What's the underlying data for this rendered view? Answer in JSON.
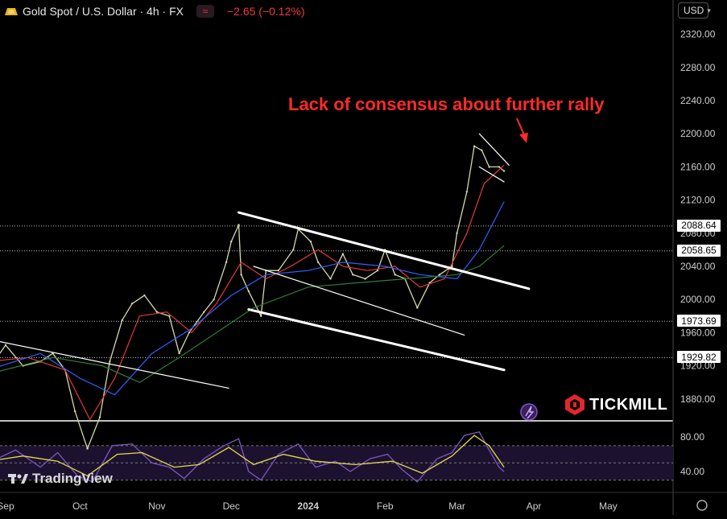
{
  "header": {
    "symbol": "Gold Spot / U.S. Dollar · 4h · FX",
    "change": "−2.65 (−0.12%)",
    "approx_icon": "approx-icon"
  },
  "currency_selector": {
    "value": "USD"
  },
  "annotation": "Lack of consensus about further rally",
  "branding": {
    "tradingview": "TradingView",
    "tickmill": "TICKMILL"
  },
  "price_badges": [
    {
      "label": "2088.64",
      "style": "light"
    },
    {
      "label": "2058.65",
      "style": "light"
    },
    {
      "label": "1973.69",
      "style": "light"
    },
    {
      "label": "1929.82",
      "style": "light"
    }
  ],
  "chart_data": {
    "type": "line",
    "title": "Gold Spot / U.S. Dollar · 4h · FX",
    "price_axis": {
      "ylim": [
        1845,
        2340
      ],
      "ticks": [
        "2320.00",
        "2280.00",
        "2240.00",
        "2200.00",
        "2160.00",
        "2120.00",
        "2080.00",
        "2040.00",
        "2000.00",
        "1960.00",
        "1920.00",
        "1880.00"
      ],
      "tick_values": [
        2320,
        2280,
        2240,
        2200,
        2160,
        2120,
        2080,
        2040,
        2000,
        1960,
        1920,
        1880
      ]
    },
    "time_axis": {
      "labels": [
        "Sep",
        "Oct",
        "Nov",
        "Dec",
        "2024",
        "Feb",
        "Mar",
        "Apr",
        "May"
      ]
    },
    "series": [
      {
        "name": "",
        "role": "price",
        "color": "#d8d8a8",
        "points": [
          [
            "2023-08-25",
            1915
          ],
          [
            "2023-09-01",
            1945
          ],
          [
            "2023-09-08",
            1920
          ],
          [
            "2023-09-15",
            1925
          ],
          [
            "2023-09-20",
            1935
          ],
          [
            "2023-09-25",
            1915
          ],
          [
            "2023-09-29",
            1865
          ],
          [
            "2023-10-04",
            1820
          ],
          [
            "2023-10-09",
            1858
          ],
          [
            "2023-10-13",
            1925
          ],
          [
            "2023-10-18",
            1975
          ],
          [
            "2023-10-22",
            1995
          ],
          [
            "2023-10-27",
            2005
          ],
          [
            "2023-11-01",
            1985
          ],
          [
            "2023-11-06",
            1980
          ],
          [
            "2023-11-10",
            1935
          ],
          [
            "2023-11-14",
            1960
          ],
          [
            "2023-11-20",
            1985
          ],
          [
            "2023-11-24",
            2000
          ],
          [
            "2023-11-29",
            2045
          ],
          [
            "2023-12-01",
            2070
          ],
          [
            "2023-12-04",
            2090
          ],
          [
            "2023-12-05",
            2030
          ],
          [
            "2023-12-08",
            2010
          ],
          [
            "2023-12-13",
            1980
          ],
          [
            "2023-12-15",
            2035
          ],
          [
            "2023-12-20",
            2035
          ],
          [
            "2023-12-26",
            2060
          ],
          [
            "2023-12-28",
            2085
          ],
          [
            "2024-01-02",
            2070
          ],
          [
            "2024-01-05",
            2045
          ],
          [
            "2024-01-10",
            2025
          ],
          [
            "2024-01-15",
            2055
          ],
          [
            "2024-01-19",
            2030
          ],
          [
            "2024-01-24",
            2025
          ],
          [
            "2024-01-29",
            2035
          ],
          [
            "2024-02-01",
            2060
          ],
          [
            "2024-02-05",
            2030
          ],
          [
            "2024-02-09",
            2025
          ],
          [
            "2024-02-14",
            1990
          ],
          [
            "2024-02-19",
            2020
          ],
          [
            "2024-02-23",
            2030
          ],
          [
            "2024-02-28",
            2040
          ],
          [
            "2024-03-01",
            2080
          ],
          [
            "2024-03-05",
            2130
          ],
          [
            "2024-03-08",
            2185
          ],
          [
            "2024-03-11",
            2180
          ],
          [
            "2024-03-14",
            2160
          ],
          [
            "2024-03-18",
            2160
          ],
          [
            "2024-03-20",
            2155
          ]
        ]
      },
      {
        "name": "",
        "role": "moving-average-fast",
        "color": "#e53935",
        "points": [
          [
            "2023-08-25",
            1925
          ],
          [
            "2023-09-10",
            1930
          ],
          [
            "2023-09-25",
            1915
          ],
          [
            "2023-10-05",
            1855
          ],
          [
            "2023-10-15",
            1905
          ],
          [
            "2023-10-25",
            1980
          ],
          [
            "2023-11-05",
            1985
          ],
          [
            "2023-11-15",
            1960
          ],
          [
            "2023-11-25",
            1995
          ],
          [
            "2023-12-05",
            2045
          ],
          [
            "2023-12-15",
            2025
          ],
          [
            "2023-12-25",
            2040
          ],
          [
            "2024-01-05",
            2060
          ],
          [
            "2024-01-15",
            2040
          ],
          [
            "2024-01-25",
            2035
          ],
          [
            "2024-02-05",
            2040
          ],
          [
            "2024-02-15",
            2015
          ],
          [
            "2024-02-25",
            2025
          ],
          [
            "2024-03-05",
            2080
          ],
          [
            "2024-03-12",
            2140
          ],
          [
            "2024-03-20",
            2162
          ]
        ]
      },
      {
        "name": "",
        "role": "moving-average-mid",
        "color": "#2962ff",
        "points": [
          [
            "2023-08-25",
            1915
          ],
          [
            "2023-09-15",
            1935
          ],
          [
            "2023-10-01",
            1905
          ],
          [
            "2023-10-15",
            1885
          ],
          [
            "2023-10-30",
            1935
          ],
          [
            "2023-11-15",
            1965
          ],
          [
            "2023-12-01",
            2005
          ],
          [
            "2023-12-15",
            2030
          ],
          [
            "2024-01-01",
            2035
          ],
          [
            "2024-01-15",
            2045
          ],
          [
            "2024-02-01",
            2040
          ],
          [
            "2024-02-15",
            2030
          ],
          [
            "2024-03-01",
            2025
          ],
          [
            "2024-03-10",
            2060
          ],
          [
            "2024-03-20",
            2118
          ]
        ]
      },
      {
        "name": "",
        "role": "moving-average-slow",
        "color": "#2e7d32",
        "points": [
          [
            "2023-08-25",
            1910
          ],
          [
            "2023-09-20",
            1930
          ],
          [
            "2023-10-10",
            1920
          ],
          [
            "2023-10-25",
            1900
          ],
          [
            "2023-11-10",
            1930
          ],
          [
            "2023-11-25",
            1960
          ],
          [
            "2023-12-10",
            1990
          ],
          [
            "2024-01-01",
            2015
          ],
          [
            "2024-01-20",
            2020
          ],
          [
            "2024-02-10",
            2025
          ],
          [
            "2024-03-01",
            2030
          ],
          [
            "2024-03-10",
            2040
          ],
          [
            "2024-03-20",
            2065
          ]
        ]
      }
    ],
    "trendlines": [
      {
        "from": [
          "2023-08-20",
          1955
        ],
        "to": [
          "2023-11-30",
          1893
        ],
        "color": "#ffffff"
      },
      {
        "from": [
          "2023-12-04",
          2105
        ],
        "to": [
          "2024-03-30",
          2013
        ],
        "color": "#ffffff"
      },
      {
        "from": [
          "2023-12-08",
          1988
        ],
        "to": [
          "2024-03-20",
          1915
        ],
        "color": "#ffffff"
      },
      {
        "from": [
          "2023-12-10",
          2040
        ],
        "to": [
          "2024-03-04",
          1957
        ],
        "color": "#ffffff"
      },
      {
        "from": [
          "2024-03-10",
          2200
        ],
        "to": [
          "2024-03-22",
          2162
        ],
        "color": "#ffffff"
      },
      {
        "from": [
          "2024-03-10",
          2160
        ],
        "to": [
          "2024-03-20",
          2142
        ],
        "color": "#ffffff"
      }
    ],
    "horizontal_levels": [
      2088.64,
      2058.65,
      1973.69,
      1929.82
    ],
    "oscillator": {
      "ylim": [
        20,
        95
      ],
      "ticks": [
        "80.00",
        "40.00"
      ],
      "tick_values": [
        80,
        40
      ],
      "band": [
        30,
        70
      ],
      "series": [
        {
          "name": "",
          "color": "#7e57c2",
          "points": [
            [
              "2023-08-25",
              50
            ],
            [
              "2023-09-05",
              65
            ],
            [
              "2023-09-15",
              45
            ],
            [
              "2023-09-22",
              62
            ],
            [
              "2023-09-30",
              35
            ],
            [
              "2023-10-06",
              28
            ],
            [
              "2023-10-14",
              70
            ],
            [
              "2023-10-22",
              72
            ],
            [
              "2023-10-30",
              50
            ],
            [
              "2023-11-06",
              45
            ],
            [
              "2023-11-12",
              32
            ],
            [
              "2023-11-20",
              55
            ],
            [
              "2023-11-28",
              70
            ],
            [
              "2023-12-04",
              78
            ],
            [
              "2023-12-08",
              40
            ],
            [
              "2023-12-13",
              30
            ],
            [
              "2023-12-20",
              60
            ],
            [
              "2023-12-28",
              72
            ],
            [
              "2024-01-04",
              45
            ],
            [
              "2024-01-12",
              52
            ],
            [
              "2024-01-18",
              40
            ],
            [
              "2024-01-26",
              55
            ],
            [
              "2024-02-02",
              60
            ],
            [
              "2024-02-08",
              42
            ],
            [
              "2024-02-14",
              28
            ],
            [
              "2024-02-22",
              55
            ],
            [
              "2024-02-28",
              62
            ],
            [
              "2024-03-04",
              82
            ],
            [
              "2024-03-10",
              86
            ],
            [
              "2024-03-14",
              65
            ],
            [
              "2024-03-18",
              45
            ],
            [
              "2024-03-20",
              40
            ]
          ]
        },
        {
          "name": "",
          "color": "#e6dd4a",
          "points": [
            [
              "2023-08-25",
              52
            ],
            [
              "2023-09-08",
              58
            ],
            [
              "2023-09-22",
              52
            ],
            [
              "2023-10-04",
              35
            ],
            [
              "2023-10-16",
              60
            ],
            [
              "2023-10-26",
              62
            ],
            [
              "2023-11-08",
              45
            ],
            [
              "2023-11-18",
              48
            ],
            [
              "2023-11-30",
              68
            ],
            [
              "2023-12-10",
              48
            ],
            [
              "2023-12-22",
              60
            ],
            [
              "2024-01-04",
              52
            ],
            [
              "2024-01-20",
              48
            ],
            [
              "2024-02-04",
              52
            ],
            [
              "2024-02-16",
              38
            ],
            [
              "2024-02-28",
              58
            ],
            [
              "2024-03-08",
              82
            ],
            [
              "2024-03-14",
              70
            ],
            [
              "2024-03-20",
              45
            ]
          ]
        }
      ]
    }
  }
}
